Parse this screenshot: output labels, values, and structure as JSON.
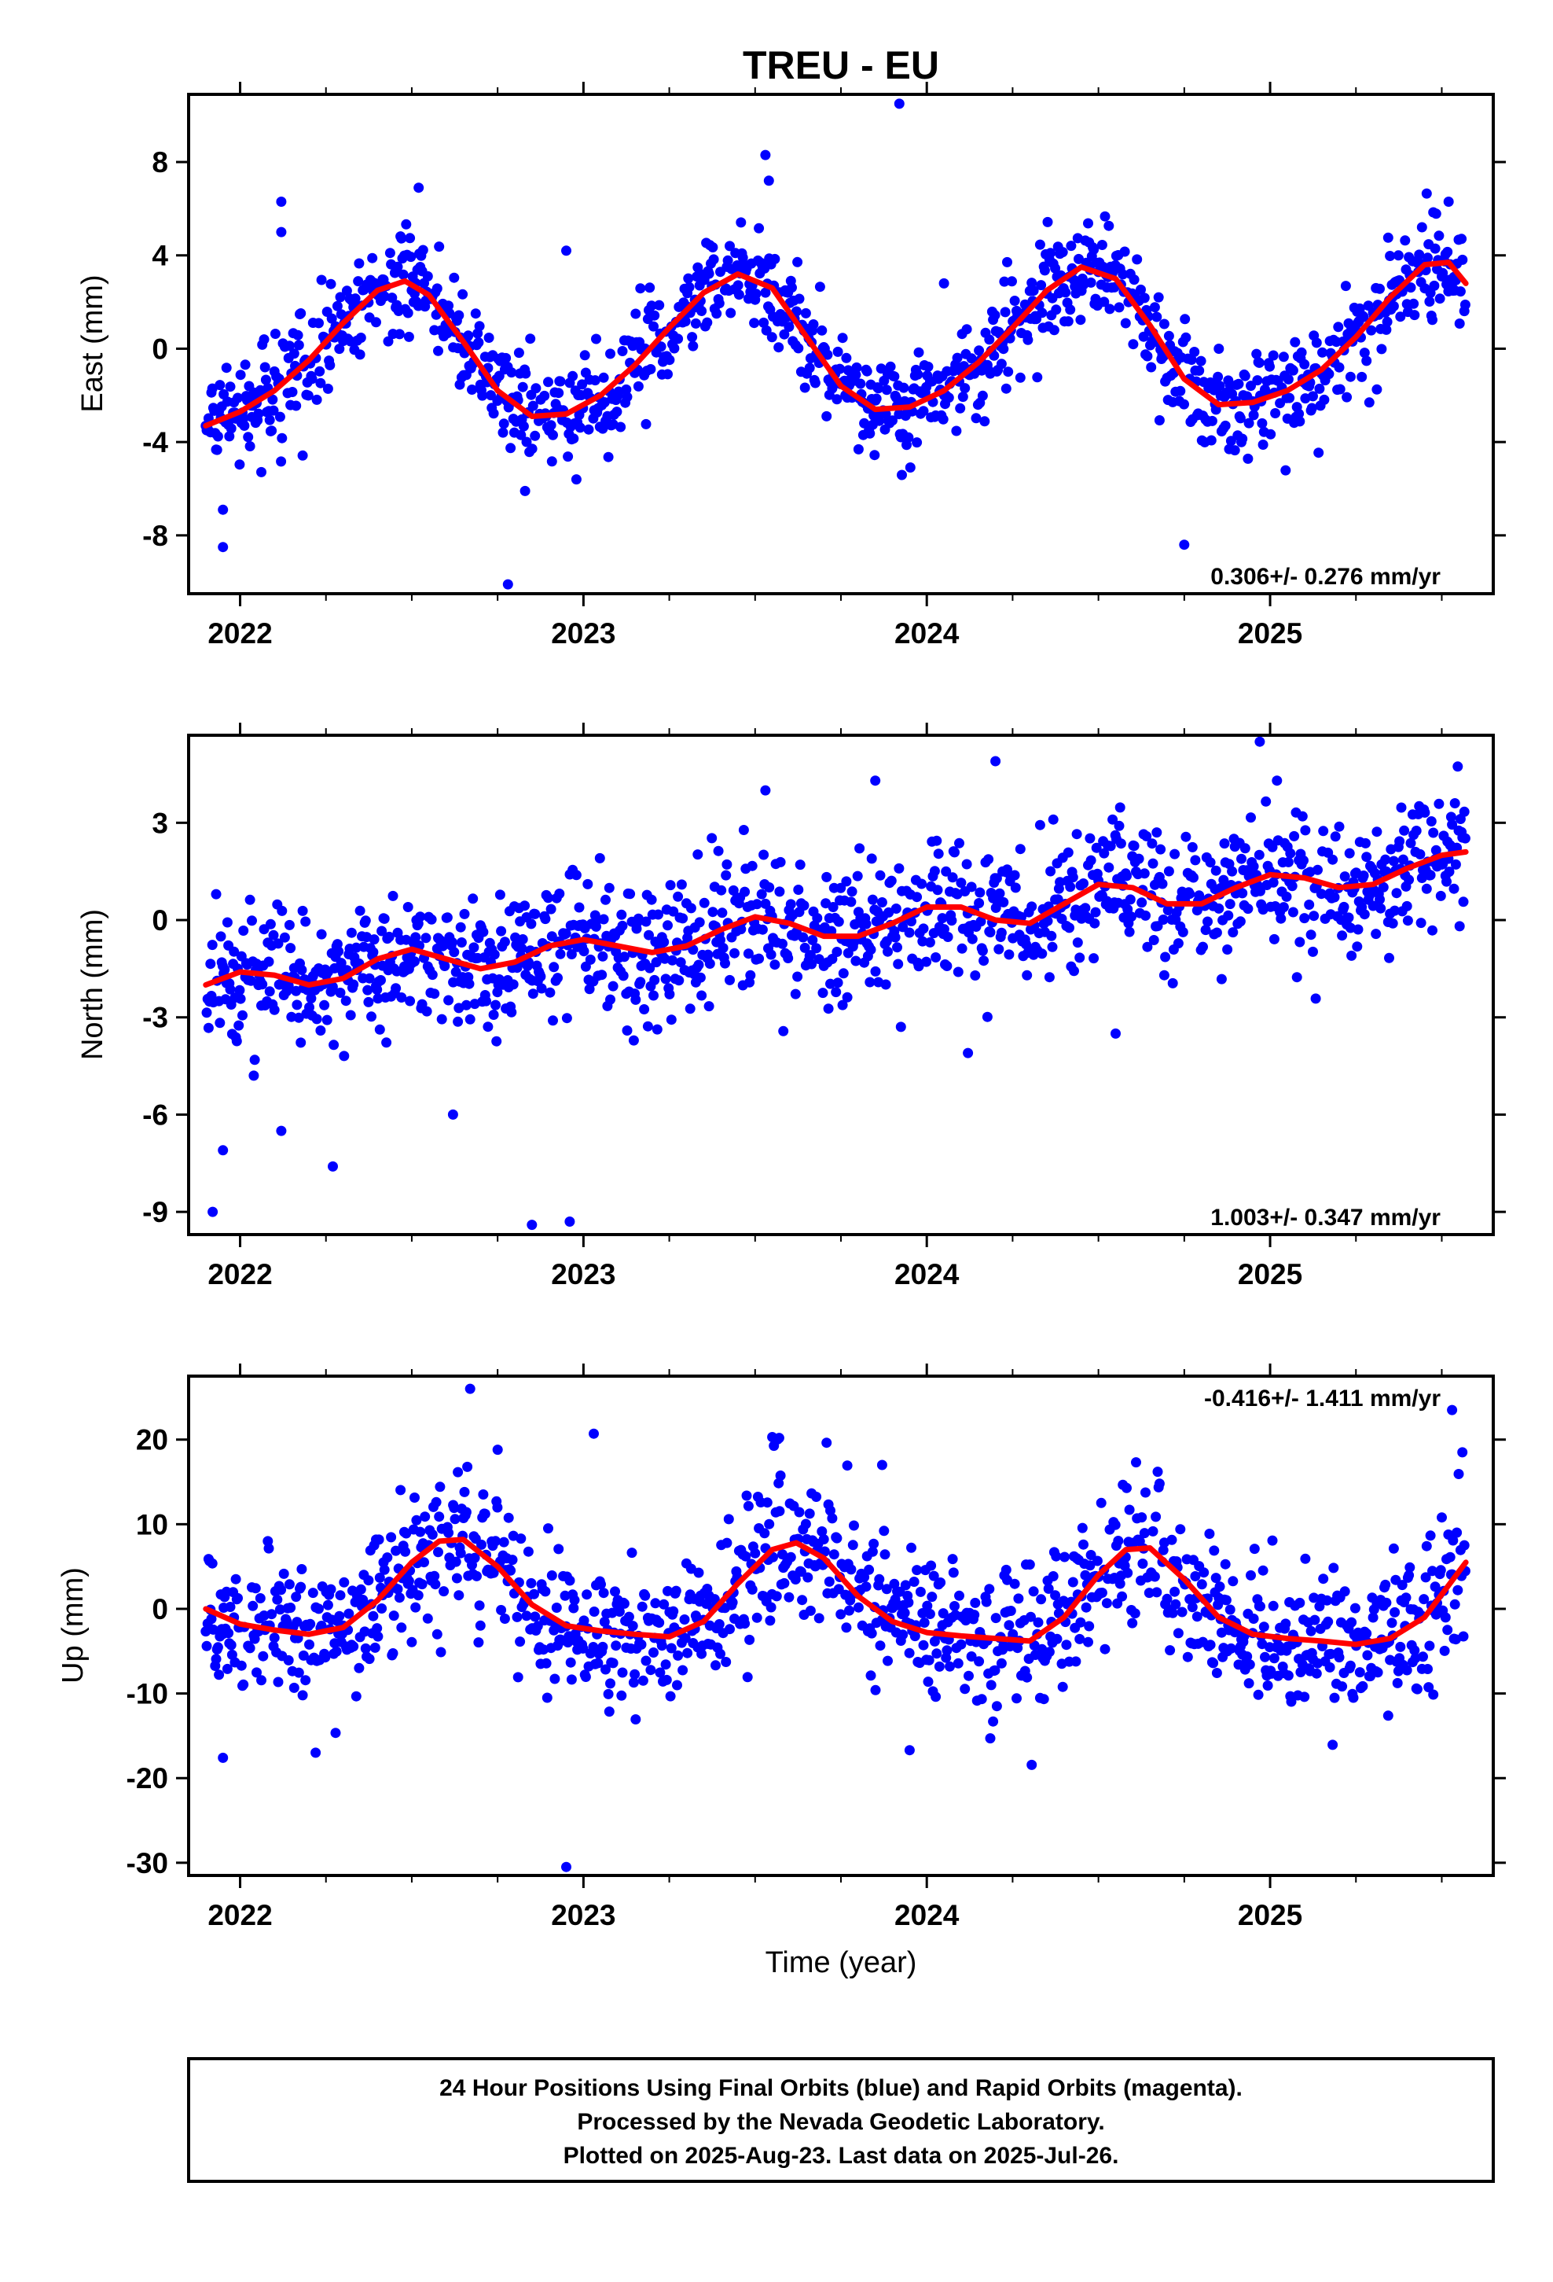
{
  "title": "TREU - EU",
  "x_axis_label": "Time (year)",
  "footer": {
    "lines": [
      "24 Hour Positions Using Final Orbits (blue) and Rapid Orbits (magenta).",
      "Processed by the Nevada Geodetic Laboratory.",
      "Plotted on 2025-Aug-23. Last data on 2025-Jul-26."
    ]
  },
  "colors": {
    "points": "#0000ff",
    "fit": "#ff0000",
    "frame": "#000000"
  },
  "chart_data": [
    {
      "type": "scatter",
      "component": "east",
      "ylabel": "East (mm)",
      "xlim": [
        2021.85,
        2025.65
      ],
      "ylim": [
        -10.5,
        10.9
      ],
      "x_ticks": [
        2022,
        2023,
        2024,
        2025
      ],
      "x_tick_labels": [
        "2022",
        "2023",
        "2024",
        "2025"
      ],
      "y_ticks": [
        -8,
        -4,
        0,
        4,
        8
      ],
      "y_tick_labels": [
        "-8",
        "-4",
        "0",
        "4",
        "8"
      ],
      "rate_label": "0.306+/- 0.276 mm/yr",
      "rate_position": "bottom-right",
      "series": [
        {
          "style": "points",
          "data_span": [
            2021.9,
            2025.57
          ],
          "cloud": {
            "rate": 0.306,
            "seasonal": [
              {
                "period": 1.0,
                "amp": 3.0,
                "phase": 2022.45
              }
            ],
            "noise": 1.1
          },
          "outliers": [
            [
              2022.12,
              6.3
            ],
            [
              2022.12,
              5.0
            ],
            [
              2021.95,
              -8.5
            ],
            [
              2021.95,
              -6.9
            ],
            [
              2022.83,
              -6.1
            ],
            [
              2022.78,
              -10.1
            ],
            [
              2022.95,
              4.2
            ],
            [
              2023.53,
              8.3
            ],
            [
              2023.54,
              7.2
            ],
            [
              2023.92,
              10.5
            ],
            [
              2024.75,
              -8.4
            ],
            [
              2025.52,
              6.3
            ],
            [
              2022.52,
              6.9
            ],
            [
              2024.05,
              2.8
            ]
          ]
        },
        {
          "style": "line",
          "x": [
            2021.9,
            2022.0,
            2022.1,
            2022.2,
            2022.3,
            2022.4,
            2022.48,
            2022.55,
            2022.65,
            2022.75,
            2022.85,
            2022.95,
            2023.05,
            2023.15,
            2023.25,
            2023.35,
            2023.45,
            2023.55,
            2023.65,
            2023.75,
            2023.85,
            2023.95,
            2024.05,
            2024.15,
            2024.25,
            2024.35,
            2024.45,
            2024.55,
            2024.65,
            2024.75,
            2024.85,
            2024.95,
            2025.05,
            2025.15,
            2025.25,
            2025.35,
            2025.45,
            2025.52,
            2025.57
          ],
          "y": [
            -3.3,
            -2.7,
            -1.8,
            -0.5,
            1.1,
            2.5,
            2.9,
            2.3,
            0.3,
            -1.8,
            -2.9,
            -2.8,
            -2.0,
            -0.7,
            0.9,
            2.4,
            3.2,
            2.6,
            0.5,
            -1.6,
            -2.6,
            -2.5,
            -1.8,
            -0.6,
            0.9,
            2.5,
            3.5,
            3.0,
            1.0,
            -1.3,
            -2.4,
            -2.3,
            -1.8,
            -0.9,
            0.5,
            2.2,
            3.6,
            3.7,
            2.8
          ]
        }
      ]
    },
    {
      "type": "scatter",
      "component": "north",
      "ylabel": "North (mm)",
      "xlim": [
        2021.85,
        2025.65
      ],
      "ylim": [
        -9.7,
        5.7
      ],
      "x_ticks": [
        2022,
        2023,
        2024,
        2025
      ],
      "x_tick_labels": [
        "2022",
        "2023",
        "2024",
        "2025"
      ],
      "y_ticks": [
        -9,
        -6,
        -3,
        0,
        3
      ],
      "y_tick_labels": [
        "-9",
        "-6",
        "-3",
        "0",
        "3"
      ],
      "rate_label": "1.003+/- 0.347 mm/yr",
      "rate_position": "bottom-right",
      "series": [
        {
          "style": "points",
          "data_span": [
            2021.9,
            2025.57
          ],
          "cloud": {
            "rate": 1.003,
            "offset": -1.95,
            "seasonal": [
              {
                "period": 1.0,
                "amp": 0.5,
                "phase": 2022.5
              }
            ],
            "noise": 1.05
          },
          "outliers": [
            [
              2021.92,
              -9.0
            ],
            [
              2021.95,
              -7.1
            ],
            [
              2022.12,
              -6.5
            ],
            [
              2022.27,
              -7.6
            ],
            [
              2022.85,
              -9.4
            ],
            [
              2022.96,
              -9.3
            ],
            [
              2022.62,
              -6.0
            ],
            [
              2023.53,
              4.0
            ],
            [
              2023.85,
              4.3
            ],
            [
              2024.2,
              4.9
            ],
            [
              2024.97,
              5.5
            ],
            [
              2025.02,
              4.3
            ],
            [
              2024.55,
              -3.5
            ],
            [
              2024.12,
              -4.1
            ]
          ]
        },
        {
          "style": "line",
          "x": [
            2021.9,
            2022.0,
            2022.1,
            2022.2,
            2022.3,
            2022.4,
            2022.5,
            2022.6,
            2022.7,
            2022.8,
            2022.9,
            2023.0,
            2023.1,
            2023.2,
            2023.3,
            2023.4,
            2023.5,
            2023.6,
            2023.7,
            2023.8,
            2023.9,
            2024.0,
            2024.1,
            2024.2,
            2024.3,
            2024.4,
            2024.5,
            2024.6,
            2024.7,
            2024.8,
            2024.9,
            2025.0,
            2025.1,
            2025.2,
            2025.3,
            2025.4,
            2025.5,
            2025.57
          ],
          "y": [
            -2.0,
            -1.6,
            -1.7,
            -2.0,
            -1.8,
            -1.2,
            -0.9,
            -1.2,
            -1.5,
            -1.3,
            -0.8,
            -0.6,
            -0.8,
            -1.0,
            -0.8,
            -0.3,
            0.1,
            -0.1,
            -0.5,
            -0.5,
            -0.1,
            0.4,
            0.4,
            0.0,
            -0.1,
            0.5,
            1.1,
            1.0,
            0.5,
            0.5,
            1.0,
            1.4,
            1.3,
            1.0,
            1.1,
            1.6,
            2.0,
            2.1
          ]
        }
      ]
    },
    {
      "type": "scatter",
      "component": "up",
      "ylabel": "Up (mm)",
      "xlim": [
        2021.85,
        2025.65
      ],
      "ylim": [
        -31.5,
        27.5
      ],
      "x_ticks": [
        2022,
        2023,
        2024,
        2025
      ],
      "x_tick_labels": [
        "2022",
        "2023",
        "2024",
        "2025"
      ],
      "y_ticks": [
        -30,
        -20,
        -10,
        0,
        10,
        20
      ],
      "y_tick_labels": [
        "-30",
        "-20",
        "-10",
        "0",
        "10",
        "20"
      ],
      "rate_label": "-0.416+/- 1.411 mm/yr",
      "rate_position": "top-right",
      "series": [
        {
          "style": "points",
          "data_span": [
            2021.9,
            2025.57
          ],
          "cloud": {
            "rate": -0.416,
            "seasonal": [
              {
                "period": 1.0,
                "amp": 5.5,
                "phase": 2022.65
              }
            ],
            "noise": 4.3
          },
          "outliers": [
            [
              2022.67,
              26.0
            ],
            [
              2023.03,
              20.7
            ],
            [
              2023.55,
              20.3
            ],
            [
              2023.57,
              20.2
            ],
            [
              2025.53,
              23.5
            ],
            [
              2025.56,
              18.5
            ],
            [
              2022.95,
              -30.5
            ],
            [
              2021.95,
              -17.6
            ],
            [
              2022.22,
              -17.0
            ],
            [
              2023.95,
              -16.7
            ],
            [
              2022.75,
              18.8
            ],
            [
              2023.87,
              17.0
            ]
          ]
        },
        {
          "style": "line",
          "x": [
            2021.9,
            2022.0,
            2022.1,
            2022.2,
            2022.3,
            2022.4,
            2022.5,
            2022.58,
            2022.65,
            2022.75,
            2022.85,
            2022.95,
            2023.05,
            2023.15,
            2023.25,
            2023.35,
            2023.45,
            2023.55,
            2023.62,
            2023.7,
            2023.8,
            2023.9,
            2024.0,
            2024.1,
            2024.2,
            2024.3,
            2024.4,
            2024.5,
            2024.58,
            2024.65,
            2024.75,
            2024.85,
            2024.95,
            2025.05,
            2025.15,
            2025.25,
            2025.35,
            2025.45,
            2025.57
          ],
          "y": [
            0.0,
            -1.8,
            -2.5,
            -3.0,
            -2.2,
            1.0,
            5.5,
            8.0,
            8.2,
            5.0,
            0.5,
            -2.0,
            -2.6,
            -3.0,
            -3.3,
            -1.5,
            3.0,
            7.0,
            7.8,
            6.0,
            1.5,
            -1.5,
            -2.8,
            -3.2,
            -3.5,
            -3.8,
            -1.0,
            4.0,
            7.0,
            7.2,
            3.5,
            -1.0,
            -3.0,
            -3.5,
            -3.8,
            -4.2,
            -3.5,
            -1.0,
            5.5
          ]
        }
      ]
    }
  ]
}
